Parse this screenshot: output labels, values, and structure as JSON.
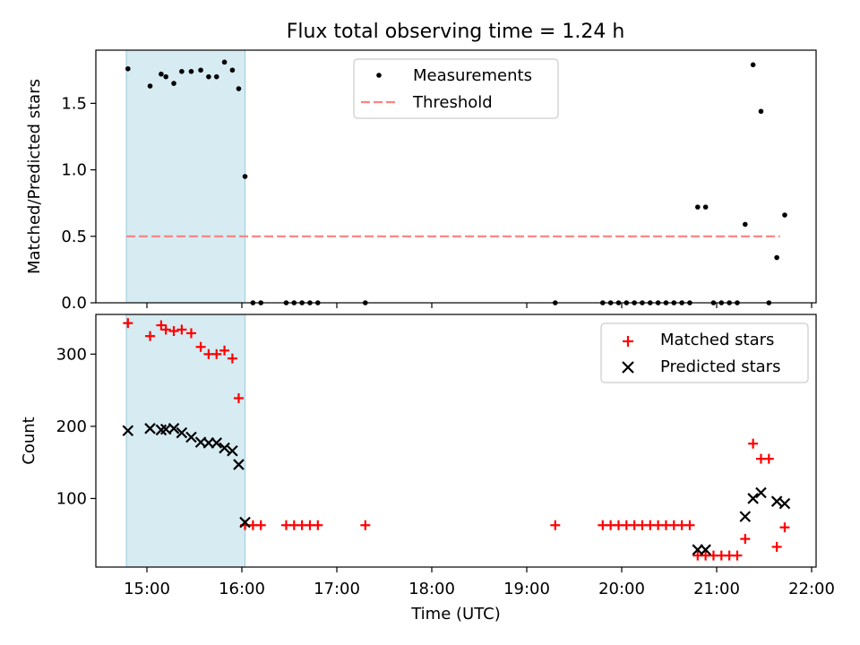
{
  "chart_data": [
    {
      "type": "scatter",
      "title": "Flux total observing time = 1.24 h",
      "xlabel": "",
      "ylabel": "Matched/Predicted stars",
      "ylim": [
        0,
        1.9
      ],
      "yticks": [
        "0.0",
        "0.5",
        "1.0",
        "1.5"
      ],
      "highlight_span": [
        "14:47",
        "16:02"
      ],
      "threshold": 0.5,
      "threshold_range": [
        "14:47",
        "21:40"
      ],
      "legend": {
        "position": "upper-center",
        "entries": [
          "Measurements",
          "Threshold"
        ]
      },
      "series": [
        {
          "name": "Measurements",
          "marker": "dot",
          "color": "#000000",
          "points": [
            [
              "14:48",
              1.76
            ],
            [
              "15:02",
              1.63
            ],
            [
              "15:09",
              1.72
            ],
            [
              "15:12",
              1.7
            ],
            [
              "15:17",
              1.65
            ],
            [
              "15:22",
              1.74
            ],
            [
              "15:28",
              1.74
            ],
            [
              "15:34",
              1.75
            ],
            [
              "15:39",
              1.7
            ],
            [
              "15:44",
              1.7
            ],
            [
              "15:49",
              1.81
            ],
            [
              "15:54",
              1.75
            ],
            [
              "15:58",
              1.61
            ],
            [
              "16:02",
              0.95
            ],
            [
              "16:07",
              0.0
            ],
            [
              "16:12",
              0.0
            ],
            [
              "16:28",
              0.0
            ],
            [
              "16:33",
              0.0
            ],
            [
              "16:38",
              0.0
            ],
            [
              "16:43",
              0.0
            ],
            [
              "16:48",
              0.0
            ],
            [
              "17:18",
              0.0
            ],
            [
              "19:18",
              0.0
            ],
            [
              "19:48",
              0.0
            ],
            [
              "19:53",
              0.0
            ],
            [
              "19:58",
              0.0
            ],
            [
              "20:03",
              0.0
            ],
            [
              "20:08",
              0.0
            ],
            [
              "20:13",
              0.0
            ],
            [
              "20:18",
              0.0
            ],
            [
              "20:23",
              0.0
            ],
            [
              "20:28",
              0.0
            ],
            [
              "20:33",
              0.0
            ],
            [
              "20:38",
              0.0
            ],
            [
              "20:43",
              0.0
            ],
            [
              "20:48",
              0.72
            ],
            [
              "20:53",
              0.72
            ],
            [
              "20:58",
              0.0
            ],
            [
              "21:03",
              0.0
            ],
            [
              "21:08",
              0.0
            ],
            [
              "21:13",
              0.0
            ],
            [
              "21:18",
              0.59
            ],
            [
              "21:23",
              1.79
            ],
            [
              "21:28",
              1.44
            ],
            [
              "21:33",
              0.0
            ],
            [
              "21:38",
              0.34
            ],
            [
              "21:43",
              0.66
            ]
          ]
        },
        {
          "name": "Threshold",
          "style": "dashed",
          "color": "#ff8080"
        }
      ]
    },
    {
      "type": "scatter",
      "title": "",
      "xlabel": "Time (UTC)",
      "ylabel": "Count",
      "ylim": [
        5,
        355
      ],
      "yticks": [
        "100",
        "200",
        "300"
      ],
      "xticks": [
        "15:00",
        "16:00",
        "17:00",
        "18:00",
        "19:00",
        "20:00",
        "21:00",
        "22:00"
      ],
      "highlight_span": [
        "14:47",
        "16:02"
      ],
      "legend": {
        "position": "top-right",
        "entries": [
          "Matched stars",
          "Predicted stars"
        ]
      },
      "series": [
        {
          "name": "Matched stars",
          "marker": "plus",
          "color": "#ff0000",
          "points": [
            [
              "14:48",
              343
            ],
            [
              "15:02",
              325
            ],
            [
              "15:09",
              340
            ],
            [
              "15:12",
              334
            ],
            [
              "15:17",
              332
            ],
            [
              "15:22",
              334
            ],
            [
              "15:28",
              329
            ],
            [
              "15:34",
              310
            ],
            [
              "15:39",
              300
            ],
            [
              "15:44",
              300
            ],
            [
              "15:49",
              305
            ],
            [
              "15:54",
              294
            ],
            [
              "15:58",
              239
            ],
            [
              "16:02",
              63
            ],
            [
              "16:07",
              63
            ],
            [
              "16:12",
              63
            ],
            [
              "16:28",
              63
            ],
            [
              "16:33",
              63
            ],
            [
              "16:38",
              63
            ],
            [
              "16:43",
              63
            ],
            [
              "16:48",
              63
            ],
            [
              "17:18",
              63
            ],
            [
              "19:18",
              63
            ],
            [
              "19:48",
              63
            ],
            [
              "19:53",
              63
            ],
            [
              "19:58",
              63
            ],
            [
              "20:03",
              63
            ],
            [
              "20:08",
              63
            ],
            [
              "20:13",
              63
            ],
            [
              "20:18",
              63
            ],
            [
              "20:23",
              63
            ],
            [
              "20:28",
              63
            ],
            [
              "20:33",
              63
            ],
            [
              "20:38",
              63
            ],
            [
              "20:43",
              63
            ],
            [
              "20:48",
              21
            ],
            [
              "20:53",
              21
            ],
            [
              "20:58",
              21
            ],
            [
              "21:03",
              21
            ],
            [
              "21:08",
              21
            ],
            [
              "21:13",
              21
            ],
            [
              "21:18",
              44
            ],
            [
              "21:23",
              176
            ],
            [
              "21:28",
              155
            ],
            [
              "21:33",
              155
            ],
            [
              "21:38",
              33
            ],
            [
              "21:43",
              60
            ]
          ]
        },
        {
          "name": "Predicted stars",
          "marker": "x",
          "color": "#000000",
          "points": [
            [
              "14:48",
              194
            ],
            [
              "15:02",
              197
            ],
            [
              "15:09",
              195
            ],
            [
              "15:12",
              196
            ],
            [
              "15:17",
              197
            ],
            [
              "15:22",
              191
            ],
            [
              "15:28",
              185
            ],
            [
              "15:34",
              178
            ],
            [
              "15:39",
              177
            ],
            [
              "15:44",
              177
            ],
            [
              "15:49",
              170
            ],
            [
              "15:54",
              166
            ],
            [
              "15:58",
              147
            ],
            [
              "16:02",
              67
            ],
            [
              "20:48",
              29
            ],
            [
              "20:53",
              29
            ],
            [
              "21:18",
              75
            ],
            [
              "21:23",
              100
            ],
            [
              "21:28",
              108
            ],
            [
              "21:38",
              96
            ],
            [
              "21:43",
              93
            ]
          ]
        }
      ]
    }
  ]
}
